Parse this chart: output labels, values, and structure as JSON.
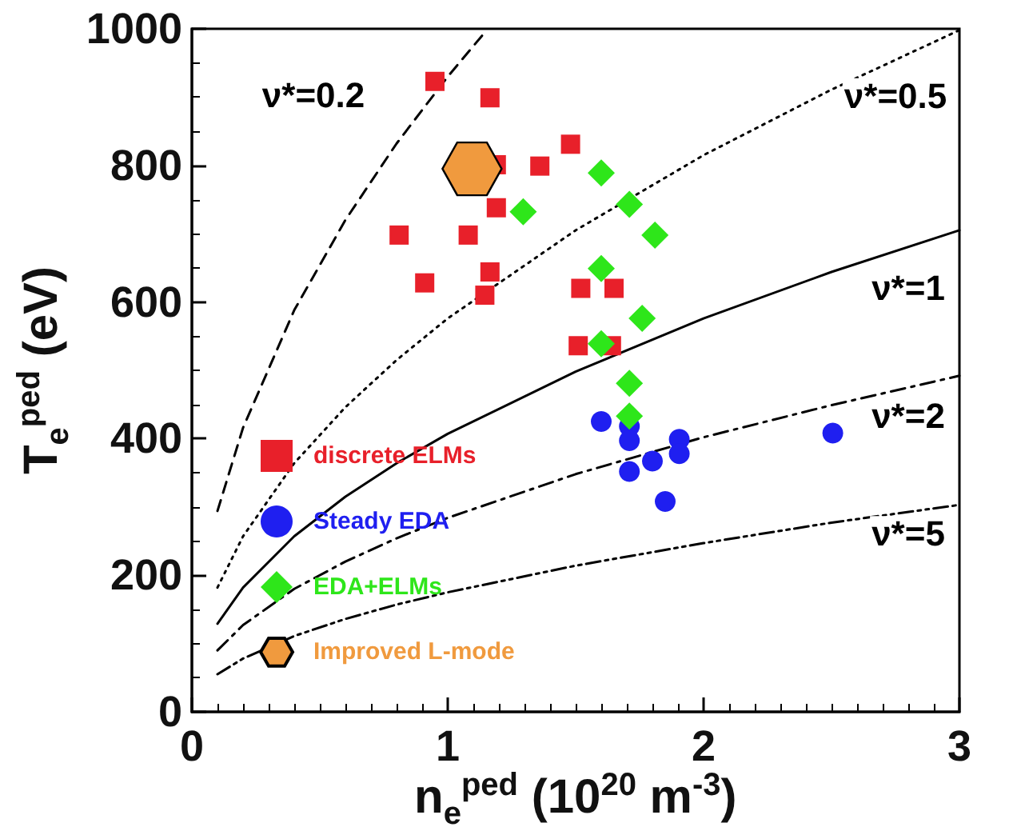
{
  "chart_data": {
    "type": "scatter",
    "xlabel": "n$_{e}$$^{ped}$ (10$^{20}$ m$^{-3}$)",
    "ylabel": "T$_{e}$$^{ped}$ (eV)",
    "xlim": [
      0,
      3
    ],
    "xticks": [
      0,
      1,
      2,
      3
    ],
    "ylim": [
      0,
      1000
    ],
    "yticks": [
      0,
      200,
      400,
      600,
      800,
      1000
    ],
    "grid": false,
    "legend": "left",
    "series": [
      {
        "name": "discrete ELMs",
        "marker": "square",
        "color": "#e8202a",
        "x": [
          0.95,
          1.165,
          1.19,
          1.36,
          1.48,
          1.19,
          0.81,
          1.08,
          0.91,
          1.165,
          1.145,
          1.52,
          1.65,
          1.51,
          1.64
        ],
        "values": [
          923,
          899,
          801,
          799,
          831,
          738,
          698,
          698,
          628,
          644,
          610,
          620,
          620,
          536,
          536
        ]
      },
      {
        "name": "Steady EDA",
        "marker": "circle",
        "color": "#1f1ff0",
        "x": [
          1.6,
          1.71,
          1.71,
          1.71,
          1.8,
          1.905,
          1.905,
          1.85,
          2.505
        ],
        "values": [
          425,
          418,
          397,
          352,
          367,
          399,
          378,
          308,
          408
        ]
      },
      {
        "name": "EDA+ELMs",
        "marker": "diamond",
        "color": "#2ee61a",
        "x": [
          1.6,
          1.295,
          1.71,
          1.81,
          1.6,
          1.76,
          1.6,
          1.71,
          1.71
        ],
        "values": [
          789,
          732,
          743,
          698,
          649,
          576,
          539,
          481,
          433
        ]
      },
      {
        "name": "Improved L-mode",
        "color": "#f09a3e",
        "x": [
          1.095
        ],
        "values": [
          795
        ]
      },
      {
        "name": "ν*=0.2",
        "type": "line",
        "marker": "none",
        "line_style": "dashed",
        "color": "#000000",
        "x": [
          0.1,
          0.2,
          0.4,
          0.6,
          0.8,
          1.0,
          1.15
        ],
        "values": [
          294,
          416,
          588,
          720,
          832,
          930,
          997
        ]
      },
      {
        "name": "ν*=0.5",
        "type": "line",
        "marker": "none",
        "line_style": "dotted",
        "color": "#000000",
        "x": [
          0.1,
          0.2,
          0.4,
          0.6,
          0.8,
          1.0,
          1.5,
          2.0,
          2.5,
          3.0
        ],
        "values": [
          182,
          257,
          364,
          446,
          515,
          576,
          705,
          815,
          911,
          998
        ]
      },
      {
        "name": "ν*=1",
        "type": "line",
        "marker": "none",
        "line_style": "solid",
        "color": "#000000",
        "x": [
          0.1,
          0.2,
          0.4,
          0.6,
          0.8,
          1.0,
          1.5,
          2.0,
          2.5,
          3.0
        ],
        "values": [
          129,
          182,
          257,
          315,
          364,
          407,
          498,
          576,
          644,
          705
        ]
      },
      {
        "name": "ν*=2",
        "type": "line",
        "marker": "none",
        "line_style": "dashdot",
        "color": "#000000",
        "x": [
          0.1,
          0.2,
          0.4,
          0.6,
          0.8,
          1.0,
          1.5,
          2.0,
          2.5,
          3.0
        ],
        "values": [
          90,
          127,
          180,
          220,
          254,
          284,
          348,
          402,
          449,
          492
        ]
      },
      {
        "name": "ν*=5",
        "type": "line",
        "marker": "none",
        "line_style": "dashdotdot",
        "color": "#000000",
        "x": [
          0.1,
          0.2,
          0.4,
          0.6,
          0.8,
          1.0,
          1.5,
          2.0,
          2.5,
          3.0
        ],
        "values": [
          55,
          78,
          111,
          136,
          157,
          175,
          214,
          247,
          277,
          303
        ]
      }
    ]
  }
}
